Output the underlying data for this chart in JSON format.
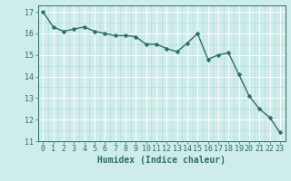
{
  "x": [
    0,
    1,
    2,
    3,
    4,
    5,
    6,
    7,
    8,
    9,
    10,
    11,
    12,
    13,
    14,
    15,
    16,
    17,
    18,
    19,
    20,
    21,
    22,
    23
  ],
  "y": [
    17.0,
    16.3,
    16.1,
    16.2,
    16.3,
    16.1,
    16.0,
    15.9,
    15.9,
    15.85,
    15.5,
    15.5,
    15.3,
    15.15,
    15.55,
    16.0,
    14.8,
    15.0,
    15.1,
    14.1,
    13.1,
    12.5,
    12.1,
    11.4
  ],
  "xlabel": "Humidex (Indice chaleur)",
  "xlim": [
    -0.5,
    23.5
  ],
  "ylim": [
    11,
    17.3
  ],
  "yticks": [
    11,
    12,
    13,
    14,
    15,
    16,
    17
  ],
  "xticks": [
    0,
    1,
    2,
    3,
    4,
    5,
    6,
    7,
    8,
    9,
    10,
    11,
    12,
    13,
    14,
    15,
    16,
    17,
    18,
    19,
    20,
    21,
    22,
    23
  ],
  "bg_color": "#ceecea",
  "grid_color_major": "#b8e0dd",
  "line_color": "#2e6e66",
  "marker_size": 2.5,
  "line_width": 1.0,
  "xlabel_fontsize": 7,
  "tick_fontsize": 6
}
